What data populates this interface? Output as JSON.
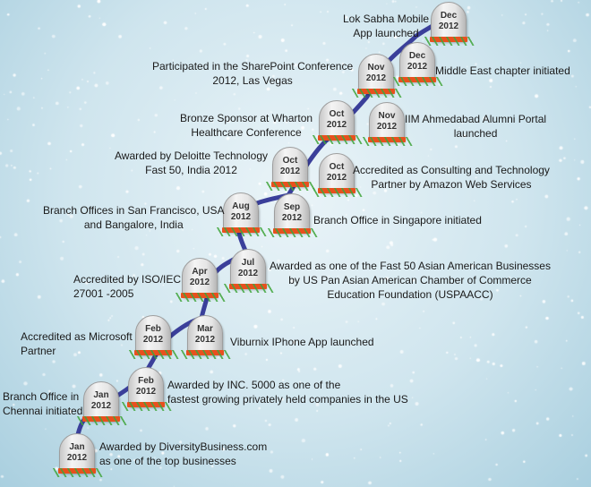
{
  "milestones": [
    {
      "month": "Jan",
      "year": "2012",
      "text": "Awarded by DiversityBusiness.com\nas one of the top businesses"
    },
    {
      "month": "Jan",
      "year": "2012",
      "text": "Branch Office in\nChennai initiated"
    },
    {
      "month": "Feb",
      "year": "2012",
      "text": "Awarded by INC. 5000 as one of the\nfastest growing privately held companies in the US"
    },
    {
      "month": "Feb",
      "year": "2012",
      "text": "Accredited as Microsoft\nPartner"
    },
    {
      "month": "Mar",
      "year": "2012",
      "text": "Viburnix IPhone App launched"
    },
    {
      "month": "Apr",
      "year": "2012",
      "text": "Accredited by ISO/IEC\n27001 -2005"
    },
    {
      "month": "Jul",
      "year": "2012",
      "text": "Awarded as one of the Fast 50 Asian American Businesses\nby US Pan Asian American Chamber of Commerce\nEducation Foundation (USPAACC)"
    },
    {
      "month": "Aug",
      "year": "2012",
      "text": "Branch Offices in San Francisco, USA\nand Bangalore, India"
    },
    {
      "month": "Sep",
      "year": "2012",
      "text": "Branch Office in Singapore initiated"
    },
    {
      "month": "Oct",
      "year": "2012",
      "text": "Awarded by Deloitte Technology\nFast 50, India 2012"
    },
    {
      "month": "Oct",
      "year": "2012",
      "text": "Accredited as Consulting and Technology\nPartner by Amazon Web Services"
    },
    {
      "month": "Oct",
      "year": "2012",
      "text": "Bronze Sponsor at Wharton\nHealthcare Conference"
    },
    {
      "month": "Nov",
      "year": "2012",
      "text": "IIM Ahmedabad Alumni Portal\nlaunched"
    },
    {
      "month": "Nov",
      "year": "2012",
      "text": "Participated in the SharePoint Conference\n2012, Las Vegas"
    },
    {
      "month": "Dec",
      "year": "2012",
      "text": "Middle East chapter initiated"
    },
    {
      "month": "Dec",
      "year": "2012",
      "text": "Lok Sabha Mobile\nApp launched"
    }
  ],
  "colors": {
    "path": "#3a3f9a",
    "tag": "#e8501e",
    "grass": "#3fa53a"
  }
}
